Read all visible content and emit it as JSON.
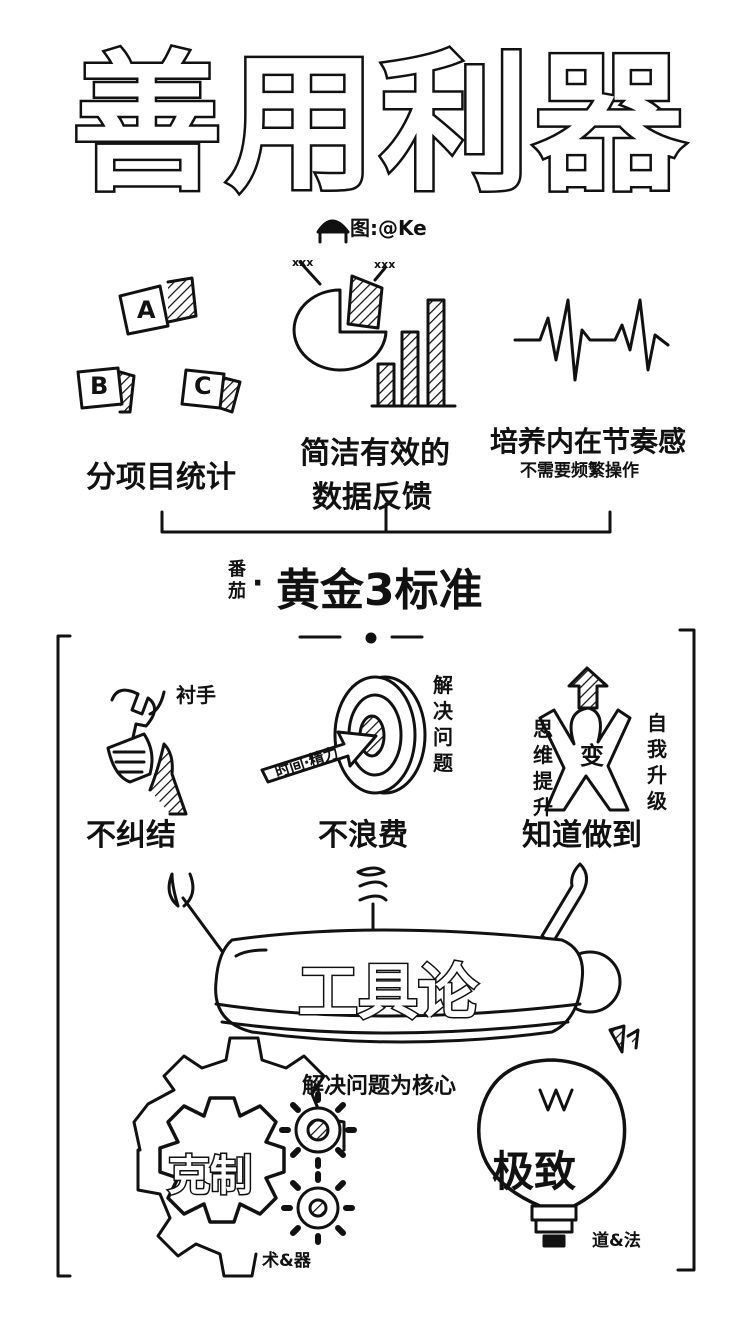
{
  "title": "善用利器",
  "credit": "图:@Ke",
  "top_section": {
    "icon_letters": [
      "A",
      "B",
      "C"
    ],
    "chart_annotations": [
      "xxx",
      "xxx"
    ],
    "items": [
      {
        "label": "分项目统计"
      },
      {
        "label_line1": "简洁有效的",
        "label_line2": "数据反馈"
      },
      {
        "label": "培养内在节奏感",
        "sublabel": "不需要频繁操作"
      }
    ],
    "section_prefix_line1": "番",
    "section_prefix_line2": "茄",
    "section_dot": "·",
    "section_title": "黄金3标准"
  },
  "bottom_section": {
    "wrench_note": "衬手",
    "wrench_label": "不纠结",
    "target_note": "解决问题",
    "arrow_text": "时间·精力",
    "target_label": "不浪费",
    "person_left_note": "思维提升",
    "person_center": "变",
    "person_right_note": "自我升级",
    "person_label": "知道做到",
    "knife_title": "工具论",
    "knife_caption": "解决问题为核心",
    "gear_title": "克制",
    "gear_note": "术&器",
    "bulb_title": "极致",
    "bulb_note": "道&法"
  }
}
